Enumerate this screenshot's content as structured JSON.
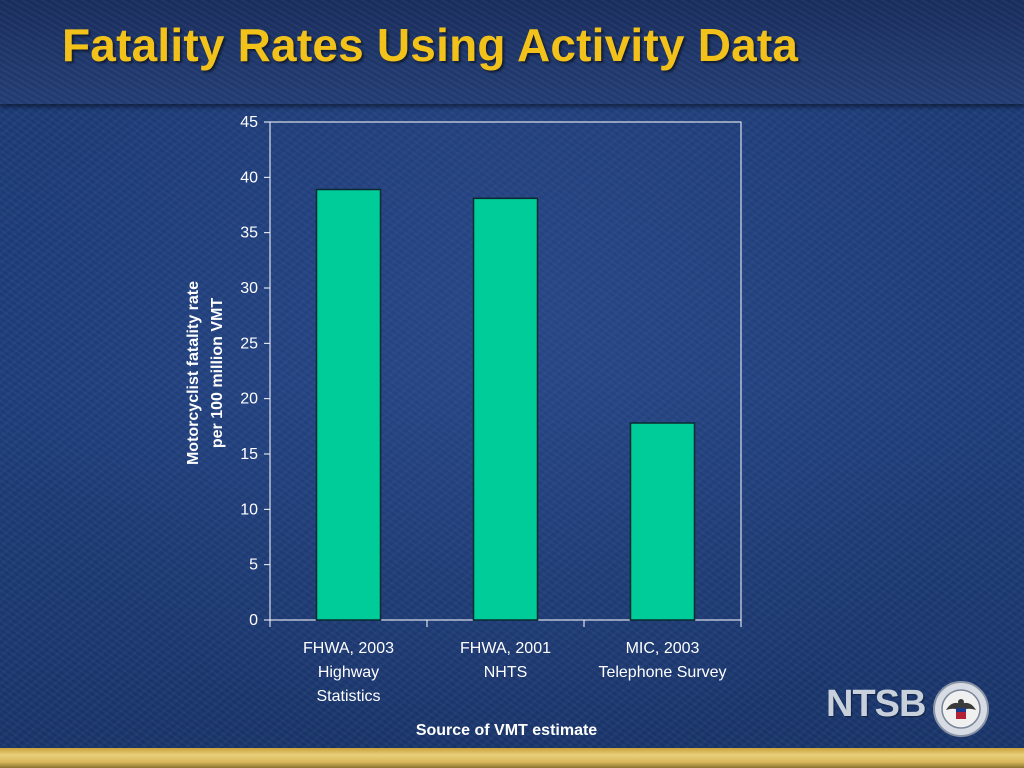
{
  "slide": {
    "title": "Fatality Rates Using Activity Data",
    "logo_text": "NTSB"
  },
  "colors": {
    "title": "#f2c21a",
    "bar": "#00cc99",
    "axis": "#ffffff",
    "text": "#ffffff",
    "background": "#1d3a73"
  },
  "chart_data": {
    "type": "bar",
    "categories": [
      [
        "FHWA, 2003",
        "Highway",
        "Statistics"
      ],
      [
        "FHWA, 2001",
        "NHTS"
      ],
      [
        "MIC, 2003",
        "Telephone Survey"
      ]
    ],
    "values": [
      38.9,
      38.1,
      17.8
    ],
    "xlabel": "Source of VMT estimate",
    "ylabel": [
      "Motorcyclist fatality rate",
      "per 100 million VMT"
    ],
    "ylim": [
      0,
      45
    ],
    "yticks": [
      0,
      5,
      10,
      15,
      20,
      25,
      30,
      35,
      40,
      45
    ],
    "grid": false,
    "legend": "none"
  }
}
